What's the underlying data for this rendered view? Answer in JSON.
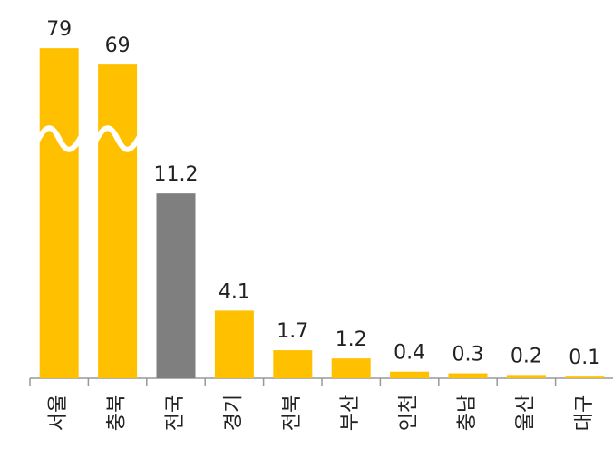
{
  "chart_data": {
    "type": "bar",
    "categories": [
      "서울",
      "충북",
      "전국",
      "경기",
      "전북",
      "부산",
      "인천",
      "충남",
      "울산",
      "대구"
    ],
    "values": [
      79,
      69,
      11.2,
      4.1,
      1.7,
      1.2,
      0.4,
      0.3,
      0.2,
      0.1
    ],
    "colors": [
      "#FFC000",
      "#FFC000",
      "#7F7F7F",
      "#FFC000",
      "#FFC000",
      "#FFC000",
      "#FFC000",
      "#FFC000",
      "#FFC000",
      "#FFC000"
    ]
  }
}
